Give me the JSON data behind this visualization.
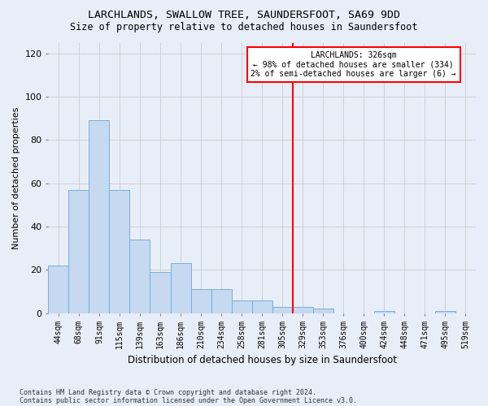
{
  "title": "LARCHLANDS, SWALLOW TREE, SAUNDERSFOOT, SA69 9DD",
  "subtitle": "Size of property relative to detached houses in Saundersfoot",
  "xlabel": "Distribution of detached houses by size in Saundersfoot",
  "ylabel": "Number of detached properties",
  "footnote1": "Contains HM Land Registry data © Crown copyright and database right 2024.",
  "footnote2": "Contains public sector information licensed under the Open Government Licence v3.0.",
  "categories": [
    "44sqm",
    "68sqm",
    "91sqm",
    "115sqm",
    "139sqm",
    "163sqm",
    "186sqm",
    "210sqm",
    "234sqm",
    "258sqm",
    "281sqm",
    "305sqm",
    "329sqm",
    "353sqm",
    "376sqm",
    "400sqm",
    "424sqm",
    "448sqm",
    "471sqm",
    "495sqm",
    "519sqm"
  ],
  "values": [
    22,
    57,
    89,
    57,
    34,
    19,
    23,
    11,
    11,
    6,
    6,
    3,
    3,
    2,
    0,
    0,
    1,
    0,
    0,
    1,
    0
  ],
  "bar_color": "#c5d9f0",
  "bar_edge_color": "#7bafd4",
  "grid_color": "#cccccc",
  "vline_color": "red",
  "annotation_title": "LARCHLANDS: 326sqm",
  "annotation_line2": "← 98% of detached houses are smaller (334)",
  "annotation_line3": "2% of semi-detached houses are larger (6) →",
  "annotation_box_color": "red",
  "annotation_bg": "white",
  "ylim": [
    0,
    125
  ],
  "background_color": "#e8eef8"
}
